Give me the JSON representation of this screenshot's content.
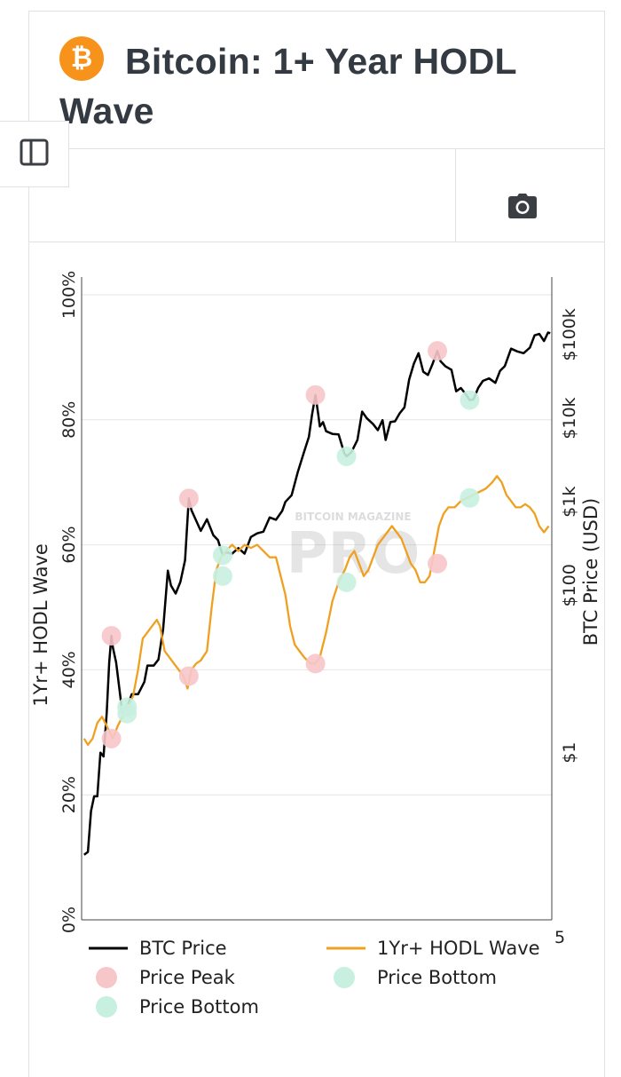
{
  "header": {
    "title": "Bitcoin: 1+ Year HODL Wave",
    "logo_icon": "bitcoin-icon",
    "logo_color": "#f7931a"
  },
  "toolbar": {
    "camera_icon": "camera-icon",
    "sidebar_icon": "sidebar-toggle-icon"
  },
  "watermark": {
    "top": "BITCOIN MAGAZINE",
    "main": "PRO"
  },
  "colors": {
    "btc_price": "#000000",
    "hodl": "#f0a020",
    "peak": "#f7c6c9",
    "bottom": "#c8f0e0"
  },
  "chart_data": {
    "type": "line",
    "time_range": [
      2010.5,
      2025.5
    ],
    "left_axis": {
      "label": "1Yr+ HODL Wave",
      "ticks": [
        "0%",
        "20%",
        "40%",
        "60%",
        "80%",
        "100%"
      ],
      "ylim": [
        0,
        100
      ]
    },
    "right_axis": {
      "label": "BTC Price (USD)",
      "scale": "log",
      "ticks": [
        "$1",
        "$100",
        "$1k",
        "$10k",
        "$100k"
      ],
      "ylim": [
        0.01,
        300000
      ]
    },
    "x_tick_visible": "5",
    "legend": [
      {
        "label": "BTC Price",
        "kind": "line",
        "color": "#000000"
      },
      {
        "label": "1Yr+ HODL Wave",
        "kind": "line",
        "color": "#f0a020"
      },
      {
        "label": "Price Peak",
        "kind": "marker",
        "color": "#f7c6c9"
      },
      {
        "label": "Price Bottom",
        "kind": "marker",
        "color": "#c8f0e0"
      },
      {
        "label": "Price Bottom",
        "kind": "marker",
        "color": "#c8f0e0"
      }
    ],
    "series": [
      {
        "name": "BTC Price",
        "axis": "right",
        "points": [
          [
            2010.58,
            0.06
          ],
          [
            2010.7,
            0.065
          ],
          [
            2010.8,
            0.2
          ],
          [
            2010.9,
            0.3
          ],
          [
            2011.0,
            0.3
          ],
          [
            2011.1,
            1.0
          ],
          [
            2011.2,
            0.9
          ],
          [
            2011.3,
            3.0
          ],
          [
            2011.38,
            12
          ],
          [
            2011.45,
            25
          ],
          [
            2011.5,
            18
          ],
          [
            2011.6,
            12
          ],
          [
            2011.7,
            6
          ],
          [
            2011.8,
            3
          ],
          [
            2011.95,
            3.5
          ],
          [
            2012.1,
            5
          ],
          [
            2012.3,
            5
          ],
          [
            2012.5,
            7
          ],
          [
            2012.6,
            11
          ],
          [
            2012.8,
            11
          ],
          [
            2012.95,
            13
          ],
          [
            2013.1,
            30
          ],
          [
            2013.25,
            150
          ],
          [
            2013.35,
            100
          ],
          [
            2013.5,
            80
          ],
          [
            2013.65,
            110
          ],
          [
            2013.8,
            200
          ],
          [
            2013.92,
            1100
          ],
          [
            2014.0,
            800
          ],
          [
            2014.15,
            600
          ],
          [
            2014.3,
            450
          ],
          [
            2014.5,
            620
          ],
          [
            2014.7,
            400
          ],
          [
            2014.85,
            350
          ],
          [
            2015.0,
            230
          ],
          [
            2015.1,
            250
          ],
          [
            2015.3,
            240
          ],
          [
            2015.5,
            280
          ],
          [
            2015.7,
            240
          ],
          [
            2015.9,
            380
          ],
          [
            2016.1,
            420
          ],
          [
            2016.3,
            440
          ],
          [
            2016.5,
            650
          ],
          [
            2016.7,
            610
          ],
          [
            2016.9,
            780
          ],
          [
            2017.0,
            1000
          ],
          [
            2017.2,
            1200
          ],
          [
            2017.4,
            2300
          ],
          [
            2017.6,
            4000
          ],
          [
            2017.75,
            6000
          ],
          [
            2017.85,
            11000
          ],
          [
            2017.96,
            19000
          ],
          [
            2018.05,
            11000
          ],
          [
            2018.1,
            8000
          ],
          [
            2018.2,
            9000
          ],
          [
            2018.3,
            7000
          ],
          [
            2018.5,
            6500
          ],
          [
            2018.7,
            6400
          ],
          [
            2018.88,
            3800
          ],
          [
            2018.95,
            3500
          ],
          [
            2019.1,
            3900
          ],
          [
            2019.3,
            5500
          ],
          [
            2019.45,
            12000
          ],
          [
            2019.6,
            10000
          ],
          [
            2019.8,
            8500
          ],
          [
            2019.95,
            7200
          ],
          [
            2020.1,
            9500
          ],
          [
            2020.2,
            5500
          ],
          [
            2020.35,
            9000
          ],
          [
            2020.5,
            9200
          ],
          [
            2020.65,
            11500
          ],
          [
            2020.8,
            13500
          ],
          [
            2020.95,
            29000
          ],
          [
            2021.1,
            45000
          ],
          [
            2021.25,
            60000
          ],
          [
            2021.4,
            36000
          ],
          [
            2021.55,
            33000
          ],
          [
            2021.7,
            45000
          ],
          [
            2021.85,
            64000
          ],
          [
            2021.95,
            48000
          ],
          [
            2022.1,
            42000
          ],
          [
            2022.3,
            38000
          ],
          [
            2022.45,
            21000
          ],
          [
            2022.6,
            23000
          ],
          [
            2022.75,
            19500
          ],
          [
            2022.88,
            16500
          ],
          [
            2023.0,
            16800
          ],
          [
            2023.15,
            23000
          ],
          [
            2023.3,
            28000
          ],
          [
            2023.5,
            30000
          ],
          [
            2023.7,
            26500
          ],
          [
            2023.85,
            37000
          ],
          [
            2024.0,
            42000
          ],
          [
            2024.2,
            68000
          ],
          [
            2024.4,
            63000
          ],
          [
            2024.6,
            60000
          ],
          [
            2024.8,
            70000
          ],
          [
            2024.95,
            98000
          ],
          [
            2025.1,
            102000
          ],
          [
            2025.25,
            84000
          ],
          [
            2025.38,
            106000
          ],
          [
            2025.45,
            104000
          ]
        ]
      },
      {
        "name": "1Yr+ HODL Wave",
        "axis": "left",
        "points": [
          [
            2010.58,
            29
          ],
          [
            2010.7,
            28
          ],
          [
            2010.85,
            29
          ],
          [
            2011.0,
            31.5
          ],
          [
            2011.15,
            32.5
          ],
          [
            2011.3,
            31
          ],
          [
            2011.4,
            30
          ],
          [
            2011.5,
            29
          ],
          [
            2011.65,
            31
          ],
          [
            2011.85,
            33
          ],
          [
            2012.0,
            34
          ],
          [
            2012.15,
            36
          ],
          [
            2012.3,
            40
          ],
          [
            2012.45,
            45
          ],
          [
            2012.6,
            46
          ],
          [
            2012.75,
            47
          ],
          [
            2012.9,
            48
          ],
          [
            2013.0,
            47
          ],
          [
            2013.15,
            43
          ],
          [
            2013.3,
            42
          ],
          [
            2013.45,
            41
          ],
          [
            2013.6,
            40
          ],
          [
            2013.75,
            39
          ],
          [
            2013.88,
            37
          ],
          [
            2014.0,
            40
          ],
          [
            2014.15,
            41
          ],
          [
            2014.3,
            41.5
          ],
          [
            2014.5,
            43
          ],
          [
            2014.65,
            50
          ],
          [
            2014.8,
            56
          ],
          [
            2014.95,
            58
          ],
          [
            2015.1,
            59
          ],
          [
            2015.3,
            60
          ],
          [
            2015.5,
            59
          ],
          [
            2015.7,
            60
          ],
          [
            2015.9,
            59.5
          ],
          [
            2016.1,
            60
          ],
          [
            2016.3,
            59
          ],
          [
            2016.5,
            58
          ],
          [
            2016.7,
            58
          ],
          [
            2016.85,
            55
          ],
          [
            2017.0,
            52
          ],
          [
            2017.15,
            47
          ],
          [
            2017.3,
            44
          ],
          [
            2017.45,
            43
          ],
          [
            2017.6,
            42
          ],
          [
            2017.8,
            41
          ],
          [
            2017.95,
            41
          ],
          [
            2018.1,
            42
          ],
          [
            2018.3,
            46
          ],
          [
            2018.5,
            51
          ],
          [
            2018.7,
            54
          ],
          [
            2018.9,
            56
          ],
          [
            2019.05,
            58
          ],
          [
            2019.2,
            59
          ],
          [
            2019.35,
            57
          ],
          [
            2019.5,
            55
          ],
          [
            2019.65,
            56
          ],
          [
            2019.8,
            58
          ],
          [
            2019.95,
            60
          ],
          [
            2020.1,
            61
          ],
          [
            2020.25,
            62
          ],
          [
            2020.4,
            63
          ],
          [
            2020.55,
            62
          ],
          [
            2020.7,
            61
          ],
          [
            2020.85,
            59
          ],
          [
            2021.0,
            57
          ],
          [
            2021.15,
            56
          ],
          [
            2021.3,
            54
          ],
          [
            2021.45,
            54
          ],
          [
            2021.6,
            55
          ],
          [
            2021.75,
            59
          ],
          [
            2021.9,
            63
          ],
          [
            2022.05,
            65
          ],
          [
            2022.2,
            66
          ],
          [
            2022.4,
            66
          ],
          [
            2022.6,
            67
          ],
          [
            2022.8,
            67.5
          ],
          [
            2023.0,
            68
          ],
          [
            2023.2,
            68.5
          ],
          [
            2023.4,
            69
          ],
          [
            2023.6,
            70
          ],
          [
            2023.75,
            71
          ],
          [
            2023.9,
            70
          ],
          [
            2024.05,
            68
          ],
          [
            2024.2,
            67
          ],
          [
            2024.35,
            66
          ],
          [
            2024.5,
            66
          ],
          [
            2024.65,
            66.5
          ],
          [
            2024.8,
            66
          ],
          [
            2024.95,
            65
          ],
          [
            2025.1,
            63
          ],
          [
            2025.25,
            62
          ],
          [
            2025.4,
            63
          ]
        ]
      }
    ],
    "markers": [
      {
        "type": "Price Peak",
        "x": 2011.45,
        "axis": "right",
        "y": 25
      },
      {
        "type": "Price Peak",
        "x": 2013.92,
        "axis": "right",
        "y": 1100
      },
      {
        "type": "Price Peak",
        "x": 2017.96,
        "axis": "right",
        "y": 19000
      },
      {
        "type": "Price Peak",
        "x": 2021.85,
        "axis": "right",
        "y": 64000
      },
      {
        "type": "Price Peak",
        "x": 2011.45,
        "axis": "left",
        "y": 29
      },
      {
        "type": "Price Peak",
        "x": 2013.92,
        "axis": "left",
        "y": 39
      },
      {
        "type": "Price Peak",
        "x": 2017.96,
        "axis": "left",
        "y": 41
      },
      {
        "type": "Price Peak",
        "x": 2021.85,
        "axis": "left",
        "y": 57
      },
      {
        "type": "Price Bottom",
        "x": 2011.95,
        "axis": "right",
        "y": 3.5
      },
      {
        "type": "Price Bottom",
        "x": 2015.0,
        "axis": "right",
        "y": 230
      },
      {
        "type": "Price Bottom",
        "x": 2018.95,
        "axis": "right",
        "y": 3500
      },
      {
        "type": "Price Bottom",
        "x": 2022.88,
        "axis": "right",
        "y": 16500
      },
      {
        "type": "Price Bottom",
        "x": 2011.95,
        "axis": "left",
        "y": 33
      },
      {
        "type": "Price Bottom",
        "x": 2015.0,
        "axis": "left",
        "y": 55
      },
      {
        "type": "Price Bottom",
        "x": 2018.95,
        "axis": "left",
        "y": 54
      },
      {
        "type": "Price Bottom",
        "x": 2022.88,
        "axis": "left",
        "y": 67.5
      }
    ]
  }
}
